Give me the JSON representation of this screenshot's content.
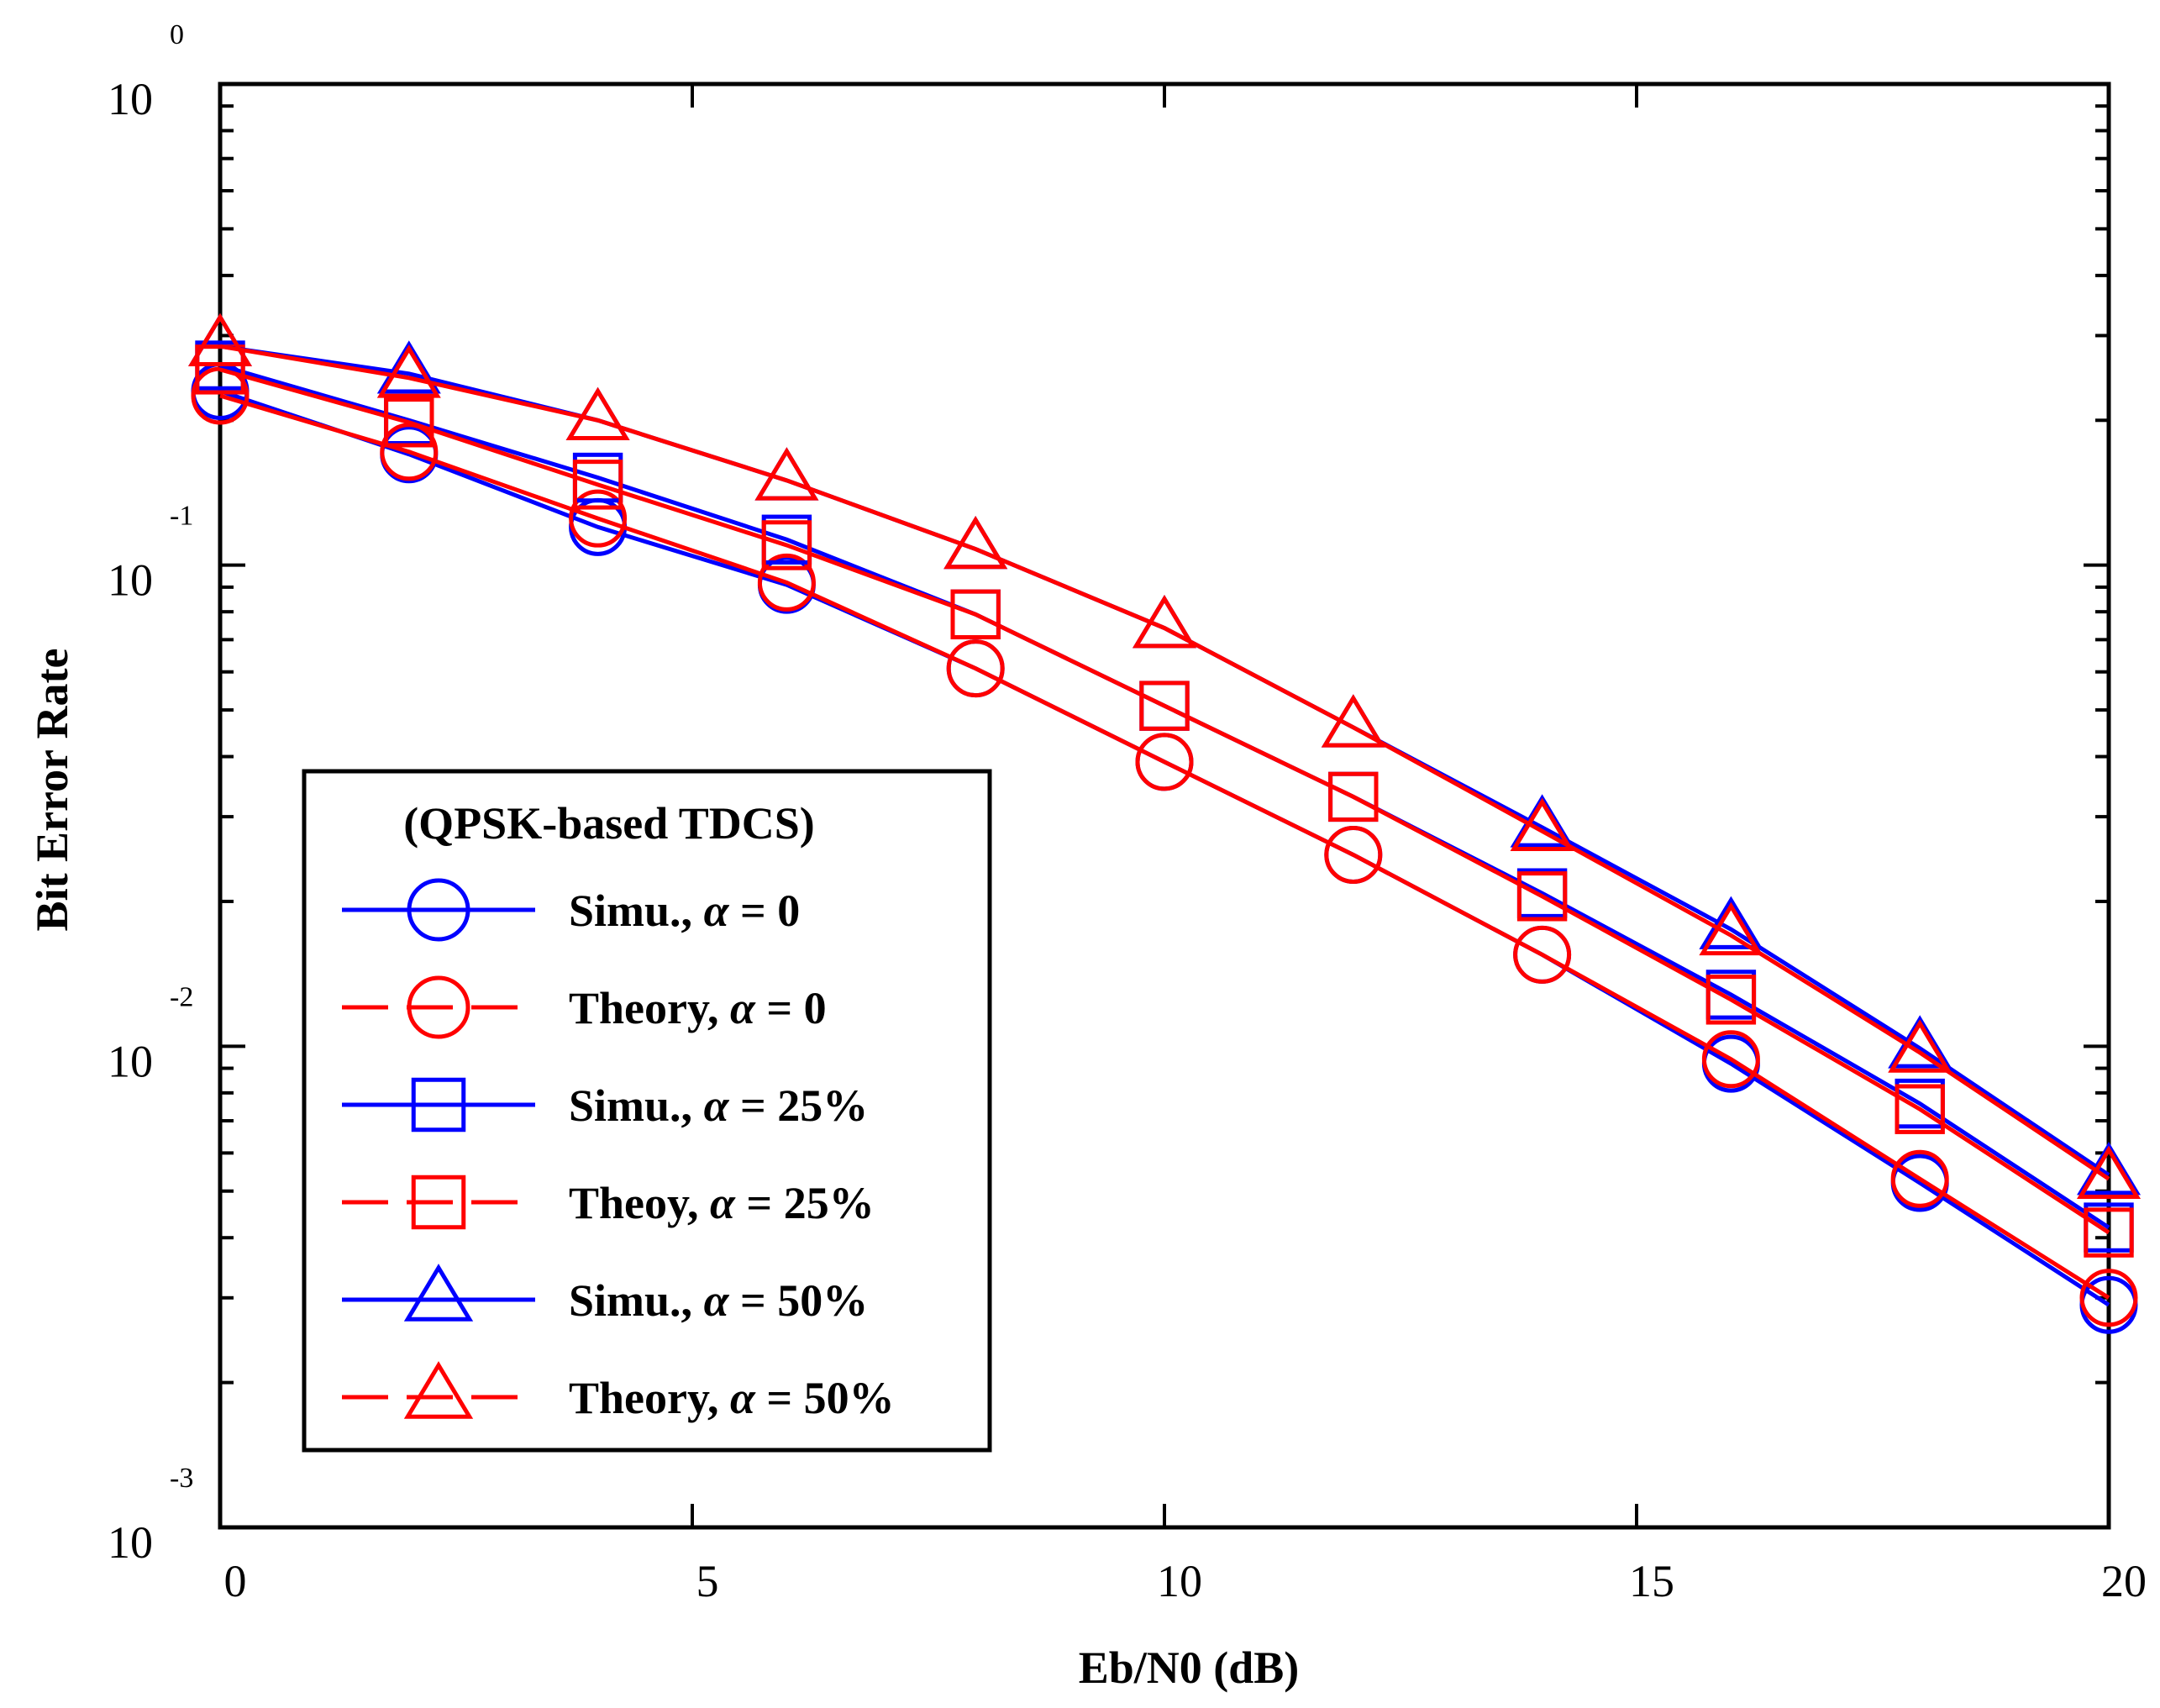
{
  "chart_data": {
    "type": "line",
    "title": "",
    "xlabel": "Eb/N0 (dB)",
    "ylabel": "Bit Error Rate",
    "xlim": [
      0,
      20
    ],
    "ylim": [
      0.001,
      1
    ],
    "yscale": "log",
    "grid": false,
    "legend_position": "bottom-left",
    "legend_title": "(QPSK-based TDCS)",
    "x_ticks": [
      "0",
      "5",
      "10",
      "15",
      "20"
    ],
    "y_ticks": [
      {
        "base": "10",
        "exp": "0"
      },
      {
        "base": "10",
        "exp": "-1"
      },
      {
        "base": "10",
        "exp": "-2"
      },
      {
        "base": "10",
        "exp": "-3"
      }
    ],
    "x": [
      0,
      2,
      4,
      6,
      8,
      10,
      12,
      14,
      16,
      18,
      20
    ],
    "series": [
      {
        "name_prefix": "Simu., ",
        "name_alpha": "α",
        "name_suffix": " = 0",
        "color": "#0000ff",
        "dash": "solid",
        "marker": "circle",
        "values": [
          0.23,
          0.17,
          0.12,
          0.091,
          0.061,
          0.039,
          0.025,
          0.0155,
          0.0092,
          0.0052,
          0.0029
        ]
      },
      {
        "name_prefix": "Theory, ",
        "name_alpha": "α",
        "name_suffix": " = 0",
        "color": "#ff0000",
        "dash": "dashed",
        "marker": "circle",
        "values": [
          0.225,
          0.172,
          0.125,
          0.092,
          0.061,
          0.039,
          0.025,
          0.0155,
          0.0094,
          0.0053,
          0.003
        ]
      },
      {
        "name_prefix": "Simu., ",
        "name_alpha": "α",
        "name_suffix": " = 25%",
        "color": "#0000ff",
        "dash": "solid",
        "marker": "square",
        "values": [
          0.26,
          0.2,
          0.152,
          0.113,
          0.079,
          0.051,
          0.033,
          0.0208,
          0.0128,
          0.0076,
          0.0042
        ]
      },
      {
        "name_prefix": "Theoy, ",
        "name_alpha": "α",
        "name_suffix": " = 25%",
        "color": "#ff0000",
        "dash": "dashed",
        "marker": "square",
        "values": [
          0.255,
          0.198,
          0.147,
          0.11,
          0.079,
          0.051,
          0.033,
          0.0205,
          0.0125,
          0.0074,
          0.0041
        ]
      },
      {
        "name_prefix": "Simu., ",
        "name_alpha": "α",
        "name_suffix": " = 50%",
        "color": "#0000ff",
        "dash": "solid",
        "marker": "triangle",
        "values": [
          0.285,
          0.25,
          0.2,
          0.15,
          0.108,
          0.074,
          0.046,
          0.0285,
          0.0175,
          0.0099,
          0.0054
        ]
      },
      {
        "name_prefix": "Theory, ",
        "name_alpha": "α",
        "name_suffix": " = 50%",
        "color": "#ff0000",
        "dash": "dashed",
        "marker": "triangle",
        "values": [
          0.285,
          0.245,
          0.2,
          0.15,
          0.108,
          0.074,
          0.046,
          0.028,
          0.017,
          0.0097,
          0.0053
        ]
      }
    ]
  }
}
